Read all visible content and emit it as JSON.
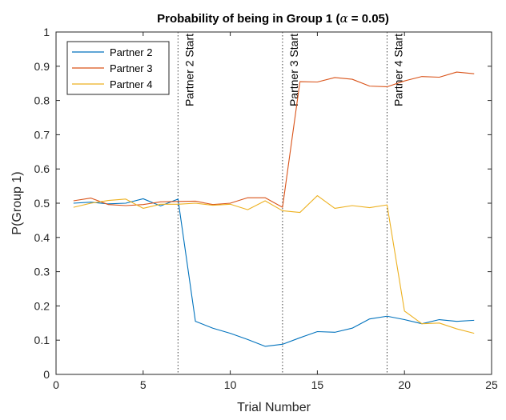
{
  "chart_data": {
    "type": "line",
    "title": "Probability of being in Group 1 (",
    "title_symbol": "α",
    "title_suffix": " = 0.05)",
    "xlabel": "Trial Number",
    "ylabel": "P(Group 1)",
    "xlim": [
      0,
      25
    ],
    "ylim": [
      0,
      1
    ],
    "xticks": [
      0,
      5,
      10,
      15,
      20,
      25
    ],
    "yticks": [
      0,
      0.1,
      0.2,
      0.3,
      0.4,
      0.5,
      0.6,
      0.7,
      0.8,
      0.9,
      1
    ],
    "grid": false,
    "legend_position": "top-left",
    "x": [
      1,
      2,
      3,
      4,
      5,
      6,
      7,
      8,
      9,
      10,
      11,
      12,
      13,
      14,
      15,
      16,
      17,
      18,
      19,
      20,
      21,
      22,
      23,
      24
    ],
    "series": [
      {
        "name": "Partner 2",
        "color": "#0072BD",
        "values": [
          0.5,
          0.503,
          0.498,
          0.5,
          0.513,
          0.492,
          0.512,
          0.155,
          0.135,
          0.12,
          0.102,
          0.082,
          0.088,
          0.107,
          0.125,
          0.123,
          0.135,
          0.162,
          0.17,
          0.16,
          0.148,
          0.16,
          0.155,
          0.158
        ]
      },
      {
        "name": "Partner 3",
        "color": "#D95319",
        "values": [
          0.507,
          0.515,
          0.496,
          0.493,
          0.496,
          0.504,
          0.505,
          0.506,
          0.496,
          0.5,
          0.516,
          0.516,
          0.488,
          0.855,
          0.854,
          0.867,
          0.862,
          0.842,
          0.84,
          0.857,
          0.87,
          0.868,
          0.883,
          0.878
        ]
      },
      {
        "name": "Partner 4",
        "color": "#EDB120",
        "values": [
          0.488,
          0.5,
          0.508,
          0.512,
          0.485,
          0.497,
          0.497,
          0.5,
          0.494,
          0.497,
          0.481,
          0.507,
          0.478,
          0.473,
          0.522,
          0.485,
          0.493,
          0.487,
          0.495,
          0.185,
          0.148,
          0.15,
          0.133,
          0.12
        ]
      }
    ],
    "vlines": [
      {
        "x": 7,
        "label": "Partner 2 Start"
      },
      {
        "x": 13,
        "label": "Partner 3 Start"
      },
      {
        "x": 19,
        "label": "Partner 4 Start"
      }
    ]
  }
}
